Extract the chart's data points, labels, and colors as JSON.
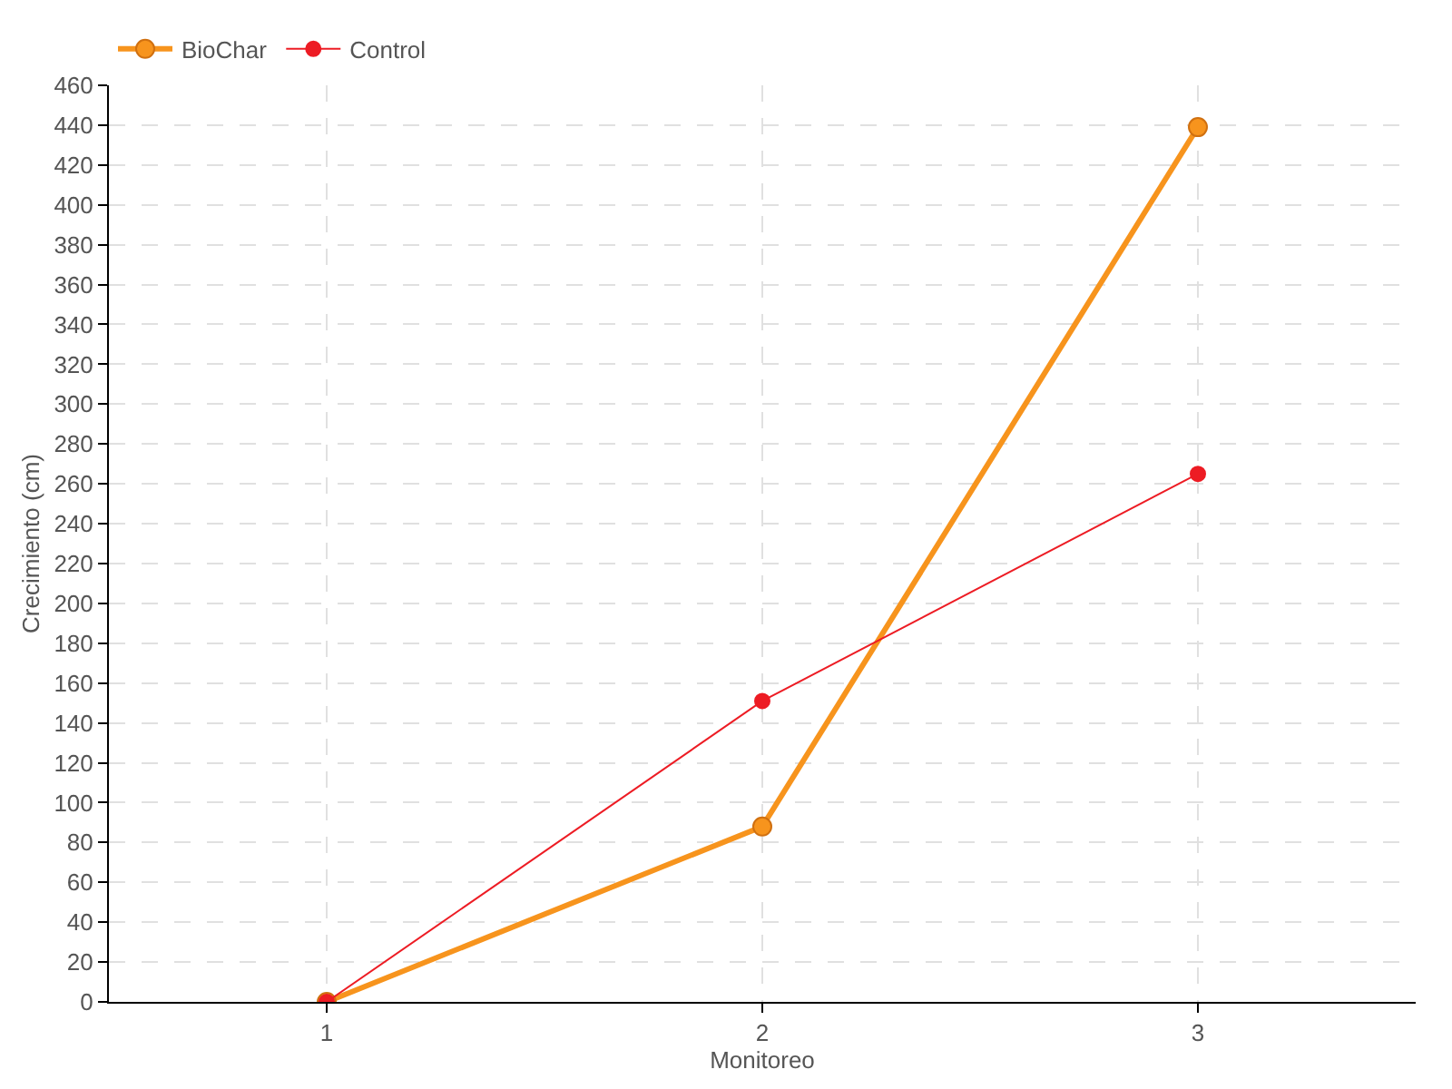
{
  "chart_data": {
    "type": "line",
    "xlabel": "Monitoreo",
    "ylabel": "Crecimiento (cm)",
    "x": [
      1,
      2,
      3
    ],
    "xlim": [
      0.5,
      3.5
    ],
    "xticks": [
      1,
      2,
      3
    ],
    "ylim": [
      0,
      460
    ],
    "yticks": [
      0,
      20,
      40,
      60,
      80,
      100,
      120,
      140,
      160,
      180,
      200,
      220,
      240,
      260,
      280,
      300,
      320,
      340,
      360,
      380,
      400,
      420,
      440,
      460
    ],
    "grid": true,
    "legend": "top left",
    "marker": "circle",
    "line_style": "solid",
    "series": [
      {
        "name": "BioChar",
        "color": "#f7941d",
        "values": [
          0,
          88,
          439
        ]
      },
      {
        "name": "Control",
        "color": "#ed1c24",
        "values": [
          0,
          151,
          265
        ]
      }
    ]
  }
}
